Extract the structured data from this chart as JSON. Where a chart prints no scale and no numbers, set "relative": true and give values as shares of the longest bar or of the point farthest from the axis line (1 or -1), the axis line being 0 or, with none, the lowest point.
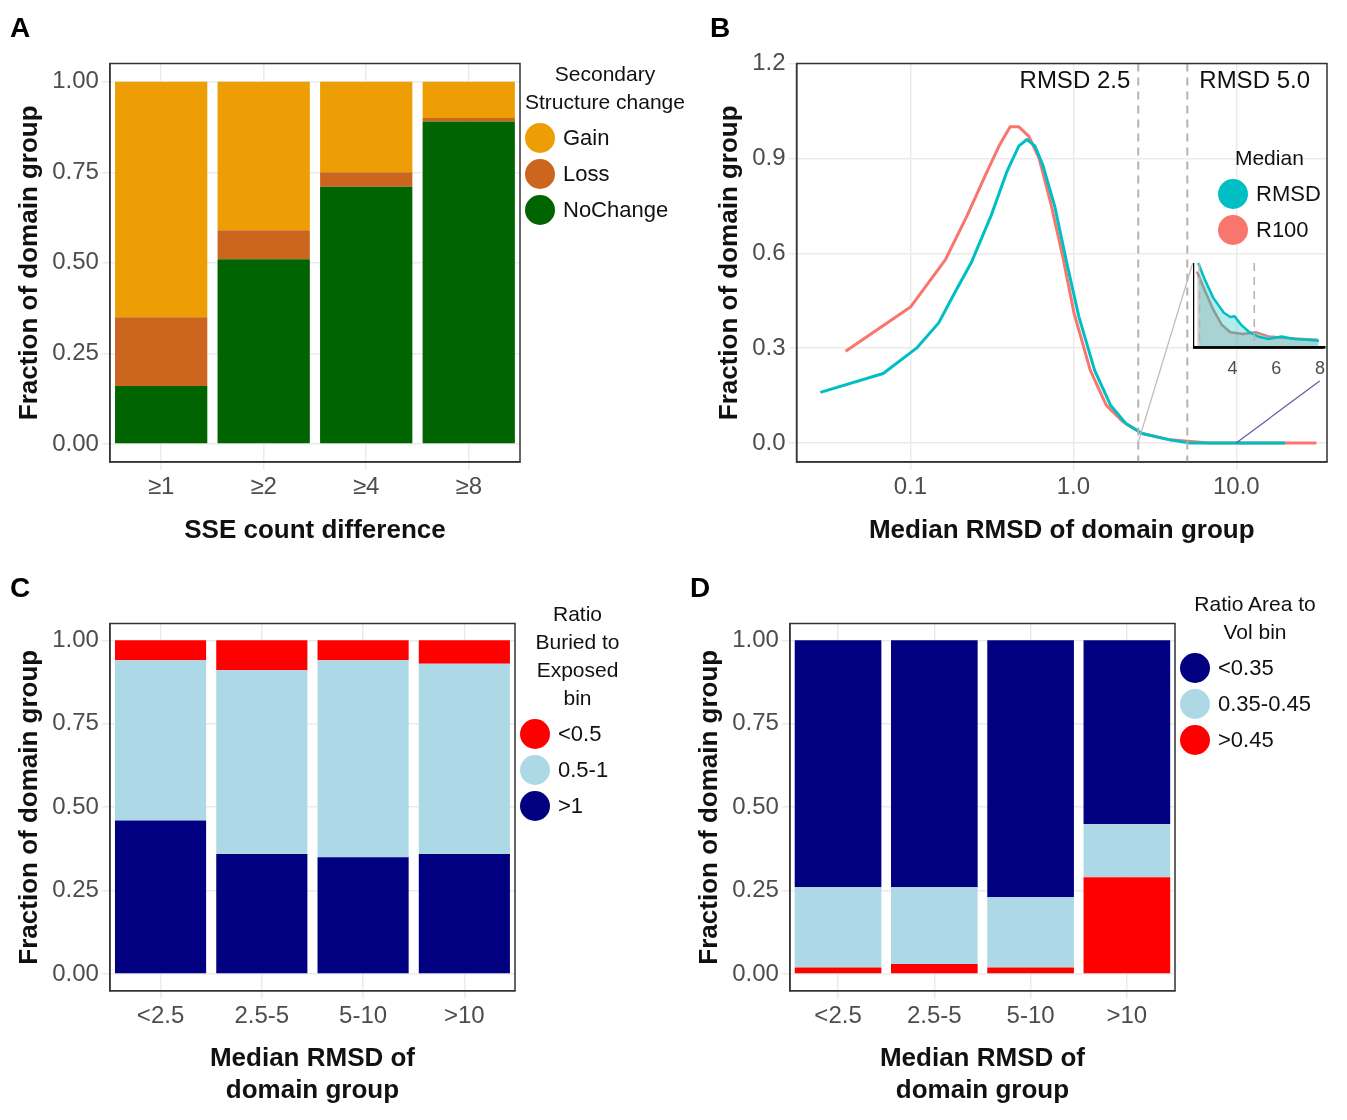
{
  "chart_data": [
    {
      "type": "bar",
      "title": "A",
      "xlabel": "SSE count difference",
      "ylabel": "Fraction of domain group",
      "legend_title": "Secondary Structure change",
      "categories": [
        "≥1",
        "≥2",
        "≥4",
        "≥8"
      ],
      "stacked": true,
      "legend": "right",
      "grid": true,
      "ylim": [
        -0.05,
        1.05
      ],
      "yticks": [
        {
          "value": 0,
          "label": "0.00"
        },
        0.25,
        {
          "value": 0.5,
          "label": "0.50"
        },
        0.75,
        {
          "value": 1,
          "label": "1.00"
        }
      ],
      "series": [
        {
          "name": "NoChange",
          "color": "#006400",
          "values": [
            0.16,
            0.51,
            0.71,
            0.89
          ]
        },
        {
          "name": "Loss",
          "color": "#cc661f",
          "values": [
            0.19,
            0.08,
            0.04,
            0.01
          ]
        },
        {
          "name": "Gain",
          "color": "#ee9e05",
          "values": [
            0.65,
            0.41,
            0.25,
            0.1
          ]
        }
      ]
    },
    {
      "type": "line",
      "title": "B",
      "xlabel": "Median RMSD of domain group",
      "ylabel": "Fraction of domain group",
      "legend_title": "Median",
      "log": "x",
      "grid": true,
      "legend": "top right",
      "xlim": [
        0.02,
        36
      ],
      "xticks": [
        0.1,
        {
          "value": 1,
          "label": "1.0"
        },
        {
          "value": 10,
          "label": "10.0"
        }
      ],
      "ylim": [
        -0.06,
        1.2
      ],
      "yticks": [
        {
          "value": 0,
          "label": "0.0"
        },
        0.3,
        0.6,
        0.9,
        1.2
      ],
      "ref_lines": [
        {
          "axis": "x",
          "value": 2.5,
          "label": "RMSD 2.5",
          "color": "#b3b3b3",
          "line_style": "dashed"
        },
        {
          "axis": "x",
          "value": 5.0,
          "label": "RMSD 5.0",
          "color": "#b3b3b3",
          "line_style": "dashed"
        }
      ],
      "series": [
        {
          "name": "RMSD",
          "color": "#00bfc4",
          "x": [
            0.028,
            0.068,
            0.109,
            0.149,
            0.189,
            0.236,
            0.313,
            0.392,
            0.463,
            0.519,
            0.58,
            0.648,
            0.767,
            0.91,
            1.08,
            1.35,
            1.69,
            2.11,
            2.64,
            3.92,
            5.19,
            10.2,
            19.9
          ],
          "values": [
            0.16,
            0.22,
            0.3,
            0.38,
            0.48,
            0.57,
            0.72,
            0.86,
            0.94,
            0.96,
            0.94,
            0.88,
            0.75,
            0.57,
            0.4,
            0.23,
            0.12,
            0.06,
            0.03,
            0.01,
            0.0,
            0.0,
            0.0
          ]
        },
        {
          "name": "R100",
          "color": "#f8766d",
          "x": [
            0.04,
            0.1,
            0.164,
            0.223,
            0.296,
            0.35,
            0.409,
            0.463,
            0.533,
            0.616,
            0.725,
            0.86,
            1.01,
            1.27,
            1.59,
            1.99,
            2.64,
            3.92,
            6.8,
            19.9,
            31
          ],
          "values": [
            0.29,
            0.43,
            0.58,
            0.72,
            0.86,
            0.94,
            1.0,
            1.0,
            0.97,
            0.9,
            0.76,
            0.59,
            0.41,
            0.23,
            0.12,
            0.07,
            0.03,
            0.01,
            0.0,
            0.0,
            0.0
          ]
        }
      ]
    },
    {
      "type": "area",
      "relative": true,
      "tick_labels": "x",
      "xlim": [
        2.2,
        8.2
      ],
      "xticks": [
        4,
        6,
        8
      ],
      "ref_lines": [
        {
          "axis": "x",
          "value": 2.5,
          "color": "#b3b3b3",
          "line_style": "dashed"
        },
        {
          "axis": "x",
          "value": 5.0,
          "color": "#b3b3b3",
          "line_style": "dashed"
        }
      ],
      "series": [
        {
          "color": "#00bfc4",
          "x": [
            2.44,
            2.73,
            3.12,
            3.61,
            3.9,
            4.1,
            4.39,
            4.78,
            5.17,
            5.66,
            6.24,
            6.83,
            7.41,
            7.96
          ],
          "values": [
            1.0,
            0.81,
            0.59,
            0.41,
            0.36,
            0.37,
            0.27,
            0.18,
            0.13,
            0.1,
            0.13,
            0.1,
            0.09,
            0.08
          ]
        },
        {
          "color": "#c98a80",
          "x": [
            2.38,
            2.73,
            3.12,
            3.51,
            3.9,
            4.49,
            5.07,
            5.66,
            6.44,
            7.22,
            7.9
          ],
          "values": [
            0.9,
            0.68,
            0.45,
            0.27,
            0.18,
            0.16,
            0.18,
            0.13,
            0.11,
            0.1,
            0.09
          ]
        }
      ]
    },
    {
      "type": "bar",
      "title": "C",
      "xlabel": "Median RMSD of domain group",
      "ylabel": "Fraction of domain group",
      "legend_title": "Ratio Buried to Exposed bin",
      "categories": [
        "<2.5",
        "2.5-5",
        "5-10",
        ">10"
      ],
      "stacked": true,
      "legend": "right",
      "grid": true,
      "ylim": [
        -0.05,
        1.05
      ],
      "yticks": [
        {
          "value": 0,
          "label": "0.00"
        },
        0.25,
        {
          "value": 0.5,
          "label": "0.50"
        },
        0.75,
        {
          "value": 1,
          "label": "1.00"
        }
      ],
      "series": [
        {
          "name": ">1",
          "color": "#000080",
          "values": [
            0.46,
            0.36,
            0.35,
            0.36
          ]
        },
        {
          "name": "0.5-1",
          "color": "#add8e6",
          "values": [
            0.48,
            0.55,
            0.59,
            0.57
          ]
        },
        {
          "name": "<0.5",
          "color": "#ff0000",
          "values": [
            0.06,
            0.09,
            0.06,
            0.07
          ]
        }
      ]
    },
    {
      "type": "bar",
      "title": "D",
      "xlabel": "Median RMSD of domain group",
      "ylabel": "Fraction of domain group",
      "legend_title": "Ratio Area to Vol bin",
      "categories": [
        "<2.5",
        "2.5-5",
        "5-10",
        ">10"
      ],
      "stacked": true,
      "legend": "right",
      "grid": true,
      "ylim": [
        -0.05,
        1.05
      ],
      "yticks": [
        {
          "value": 0,
          "label": "0.00"
        },
        0.25,
        {
          "value": 0.5,
          "label": "0.50"
        },
        0.75,
        {
          "value": 1,
          "label": "1.00"
        }
      ],
      "series": [
        {
          "name": ">0.45",
          "color": "#ff0000",
          "values": [
            0.02,
            0.03,
            0.02,
            0.29
          ]
        },
        {
          "name": "0.35-0.45",
          "color": "#add8e6",
          "values": [
            0.24,
            0.23,
            0.21,
            0.16
          ]
        },
        {
          "name": "<0.35",
          "color": "#000080",
          "values": [
            0.74,
            0.74,
            0.77,
            0.55
          ]
        }
      ]
    }
  ]
}
